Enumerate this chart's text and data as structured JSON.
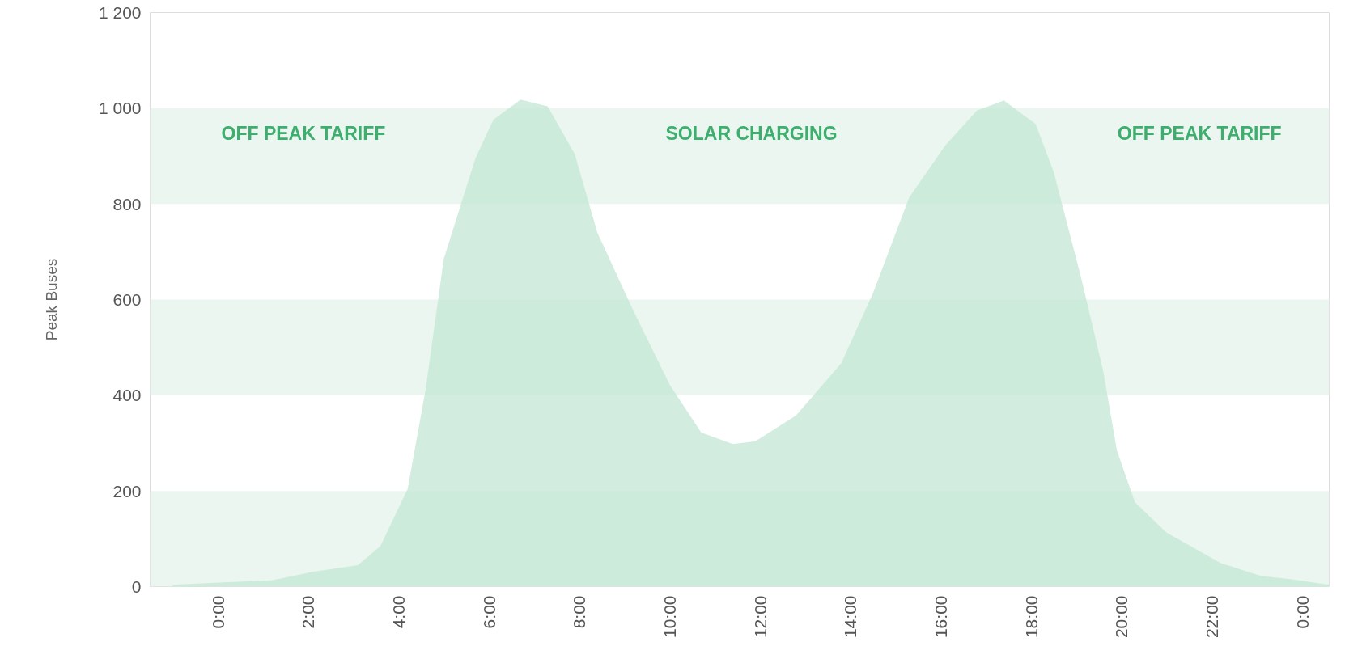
{
  "chart_data": {
    "type": "area",
    "ylabel": "Peak Buses",
    "x": [
      -1.0,
      1.2,
      2.1,
      3.1,
      3.6,
      4.2,
      4.6,
      5.0,
      5.7,
      6.1,
      6.7,
      7.3,
      7.9,
      8.4,
      9.2,
      10.0,
      10.7,
      11.4,
      11.9,
      12.8,
      13.8,
      14.5,
      15.3,
      16.1,
      16.8,
      17.4,
      18.1,
      18.5,
      19.1,
      19.6,
      19.9,
      20.3,
      21.0,
      22.2,
      23.1,
      23.7,
      24.6
    ],
    "series": [
      {
        "color": "#c3e7d4",
        "values": [
          4,
          13,
          31,
          45,
          85,
          204,
          413,
          685,
          895,
          976,
          1018,
          1004,
          904,
          740,
          576,
          422,
          322,
          298,
          304,
          358,
          467,
          613,
          813,
          922,
          995,
          1016,
          967,
          867,
          649,
          449,
          285,
          176,
          113,
          49,
          22,
          16,
          4
        ]
      }
    ],
    "xlim": [
      -1.5,
      24.6
    ],
    "ylim": [
      0,
      1200
    ],
    "xticks": [
      {
        "value": 0,
        "label": "0:00"
      },
      {
        "value": 2,
        "label": "2:00"
      },
      {
        "value": 4,
        "label": "4:00"
      },
      {
        "value": 6,
        "label": "6:00"
      },
      {
        "value": 8,
        "label": "8:00"
      },
      {
        "value": 10,
        "label": "10:00"
      },
      {
        "value": 12,
        "label": "12:00"
      },
      {
        "value": 14,
        "label": "14:00"
      },
      {
        "value": 16,
        "label": "16:00"
      },
      {
        "value": 18,
        "label": "18:00"
      },
      {
        "value": 20,
        "label": "20:00"
      },
      {
        "value": 22,
        "label": "22:00"
      },
      {
        "value": 24,
        "label": "0:00"
      }
    ],
    "yticks": [
      0,
      200,
      400,
      600,
      800,
      {
        "value": 1000,
        "label": "1 000"
      },
      {
        "value": 1200,
        "label": "1 200"
      }
    ],
    "bands": [
      {
        "axis": "y",
        "from": 0,
        "to": 200,
        "color": "#eaf6ef"
      },
      {
        "axis": "y",
        "from": 400,
        "to": 600,
        "color": "#eaf6ef"
      },
      {
        "axis": "y",
        "from": 800,
        "to": 1000,
        "color": "#eaf6ef"
      }
    ],
    "annotations": [
      "OFF PEAK TARIFF",
      "SOLAR CHARGING",
      "OFF PEAK TARIFF"
    ]
  }
}
